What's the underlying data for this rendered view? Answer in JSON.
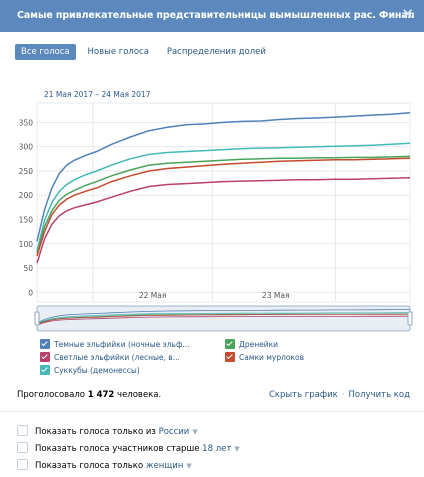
{
  "header": {
    "title": "Самые привлекательные представительницы вымышленных рас. Финал",
    "close_glyph": "✕"
  },
  "tabs": [
    {
      "label": "Все голоса",
      "active": true
    },
    {
      "label": "Новые голоса",
      "active": false
    },
    {
      "label": "Распределения долей",
      "active": false
    }
  ],
  "date_range": "21 Мая 2017 – 24 Мая 2017",
  "chart_data": {
    "type": "line",
    "y_ticks": [
      "0",
      "50",
      "100",
      "150",
      "200",
      "250",
      "300",
      "350"
    ],
    "ylim": [
      -20,
      390
    ],
    "x_ticks": [
      "22 Мая",
      "23 Мая"
    ],
    "grid": true,
    "x": [
      0,
      0.02,
      0.04,
      0.06,
      0.08,
      0.1,
      0.13,
      0.16,
      0.2,
      0.25,
      0.3,
      0.35,
      0.4,
      0.45,
      0.5,
      0.55,
      0.6,
      0.65,
      0.7,
      0.75,
      0.8,
      0.85,
      0.9,
      0.95,
      1.0
    ],
    "series": [
      {
        "name": "Темные эльфийки (ночные эльф...",
        "color": "#5181b8",
        "values": [
          105,
          170,
          215,
          245,
          262,
          272,
          282,
          290,
          305,
          320,
          333,
          340,
          345,
          347,
          350,
          352,
          353,
          356,
          358,
          359,
          361,
          363,
          365,
          367,
          370
        ]
      },
      {
        "name": "Суккубы (демонессы)",
        "color": "#44b9b6",
        "values": [
          85,
          148,
          185,
          208,
          222,
          232,
          242,
          250,
          262,
          275,
          284,
          288,
          290,
          292,
          294,
          296,
          297,
          298,
          299,
          300,
          301,
          302,
          303,
          305,
          307
        ]
      },
      {
        "name": "Дренейки",
        "color": "#4ba35b",
        "values": [
          80,
          135,
          168,
          190,
          202,
          210,
          220,
          228,
          240,
          252,
          262,
          266,
          268,
          270,
          272,
          274,
          275,
          276,
          276,
          277,
          277,
          278,
          278,
          279,
          280
        ]
      },
      {
        "name": "Самки мурлоков",
        "color": "#c44b2e",
        "values": [
          75,
          125,
          160,
          180,
          192,
          200,
          208,
          215,
          228,
          240,
          250,
          255,
          258,
          261,
          264,
          266,
          268,
          270,
          271,
          272,
          273,
          273,
          274,
          275,
          276
        ]
      },
      {
        "name": "Светлые эльфийки (лесные, в...",
        "color": "#b8406b",
        "values": [
          60,
          110,
          140,
          158,
          168,
          174,
          180,
          186,
          196,
          208,
          218,
          222,
          224,
          226,
          228,
          229,
          230,
          231,
          232,
          232,
          233,
          233,
          234,
          235,
          236
        ]
      }
    ]
  },
  "legend": [
    {
      "label": "Темные эльфийки (ночные эльф...",
      "color": "#5181b8"
    },
    {
      "label": "Дренейки",
      "color": "#4ba35b"
    },
    {
      "label": "Светлые эльфийки (лесные, в...",
      "color": "#b8406b"
    },
    {
      "label": "Самки мурлоков",
      "color": "#c44b2e"
    },
    {
      "label": "Суккубы (демонессы)",
      "color": "#44b9b6"
    }
  ],
  "summary": {
    "prefix": "Проголосовало ",
    "count": "1 472",
    "suffix": " человека."
  },
  "links": {
    "hide_chart": "Скрыть график",
    "separator": "·",
    "get_code": "Получить код"
  },
  "filters": [
    {
      "text": "Показать голоса только из ",
      "value": "России"
    },
    {
      "text": "Показать голоса участников старше ",
      "value": "18 лет"
    },
    {
      "text": "Показать голоса только ",
      "value": "женщин"
    }
  ],
  "caret_glyph": "▼"
}
